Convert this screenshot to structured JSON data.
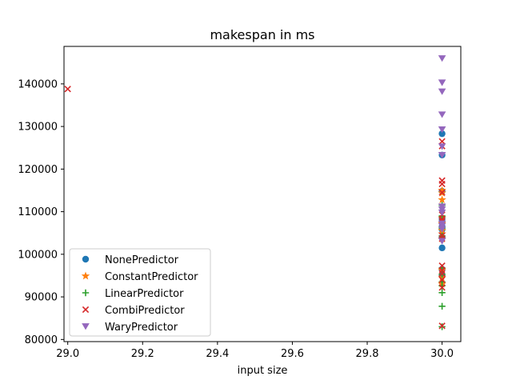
{
  "chart_data": {
    "type": "scatter",
    "title": "makespan in ms",
    "xlabel": "input size",
    "ylabel": "",
    "xlim": [
      28.99,
      30.05
    ],
    "ylim": [
      79500,
      148800
    ],
    "xticks": [
      29.0,
      29.2,
      29.4,
      29.6,
      29.8,
      30.0
    ],
    "xtick_labels": [
      "29.0",
      "29.2",
      "29.4",
      "29.6",
      "29.8",
      "30.0"
    ],
    "yticks": [
      80000,
      90000,
      100000,
      110000,
      120000,
      130000,
      140000
    ],
    "ytick_labels": [
      "80000",
      "90000",
      "100000",
      "110000",
      "120000",
      "130000",
      "140000"
    ],
    "grid": false,
    "legend_position": "lower-left",
    "series": [
      {
        "name": "NonePredictor",
        "marker": "circle",
        "color": "#1f77b4",
        "points": [
          [
            30,
            101500
          ],
          [
            30,
            104000
          ],
          [
            30,
            105800
          ],
          [
            30,
            106500
          ],
          [
            30,
            107600
          ],
          [
            30,
            108300
          ],
          [
            30,
            114800
          ],
          [
            30,
            123300
          ],
          [
            30,
            128300
          ],
          [
            30,
            95000
          ],
          [
            30,
            96500
          ]
        ]
      },
      {
        "name": "ConstantPredictor",
        "marker": "star",
        "color": "#ff7f0e",
        "points": [
          [
            30,
            103600
          ],
          [
            30,
            104800
          ],
          [
            30,
            105600
          ],
          [
            30,
            107200
          ],
          [
            30,
            108500
          ],
          [
            30,
            112800
          ],
          [
            30,
            114400
          ],
          [
            30,
            115000
          ],
          [
            30,
            93000
          ],
          [
            30,
            94500
          ],
          [
            30,
            96300
          ]
        ]
      },
      {
        "name": "LinearPredictor",
        "marker": "plus",
        "color": "#2ca02c",
        "points": [
          [
            30,
            83000
          ],
          [
            30,
            87800
          ],
          [
            30,
            91000
          ],
          [
            30,
            92600
          ],
          [
            30,
            93500
          ],
          [
            30,
            95300
          ],
          [
            30,
            96800
          ],
          [
            30,
            104300
          ],
          [
            30,
            106200
          ],
          [
            30,
            109000
          ],
          [
            30,
            111500
          ]
        ]
      },
      {
        "name": "CombiPredictor",
        "marker": "x",
        "color": "#d62728",
        "points": [
          [
            29,
            138800
          ],
          [
            30,
            83200
          ],
          [
            30,
            92200
          ],
          [
            30,
            94000
          ],
          [
            30,
            95500
          ],
          [
            30,
            96200
          ],
          [
            30,
            97300
          ],
          [
            30,
            103700
          ],
          [
            30,
            104400
          ],
          [
            30,
            107700
          ],
          [
            30,
            108200
          ],
          [
            30,
            109300
          ],
          [
            30,
            114500
          ],
          [
            30,
            116500
          ],
          [
            30,
            117300
          ],
          [
            30,
            125400
          ],
          [
            30,
            126500
          ]
        ]
      },
      {
        "name": "WaryPredictor",
        "marker": "triangle-down",
        "color": "#9467bd",
        "points": [
          [
            30,
            146000
          ],
          [
            30,
            140300
          ],
          [
            30,
            138200
          ],
          [
            30,
            132800
          ],
          [
            30,
            129300
          ],
          [
            30,
            125300
          ],
          [
            30,
            123300
          ],
          [
            30,
            111200
          ],
          [
            30,
            110500
          ],
          [
            30,
            109800
          ],
          [
            30,
            107200
          ],
          [
            30,
            106600
          ],
          [
            30,
            105900
          ],
          [
            30,
            103100
          ]
        ]
      }
    ]
  }
}
